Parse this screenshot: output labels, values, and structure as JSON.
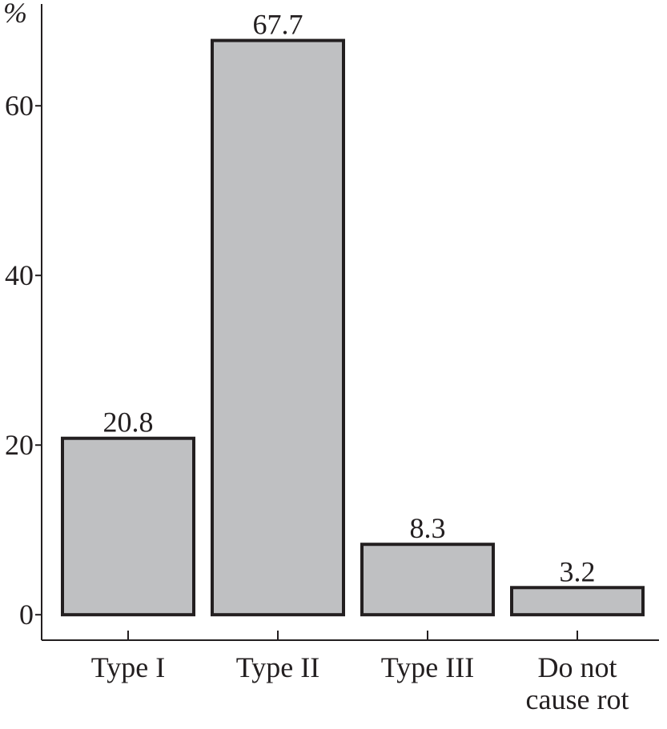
{
  "chart_data": {
    "type": "bar",
    "y_label": "%",
    "categories": [
      "Type I",
      "Type II",
      "Type III",
      "Do not cause rot"
    ],
    "values": [
      20.8,
      67.7,
      8.3,
      3.2
    ],
    "color": "#bfc0c2",
    "ylim": [
      -3,
      72
    ],
    "yticks": [
      0,
      20,
      40,
      60
    ],
    "grid": false
  }
}
